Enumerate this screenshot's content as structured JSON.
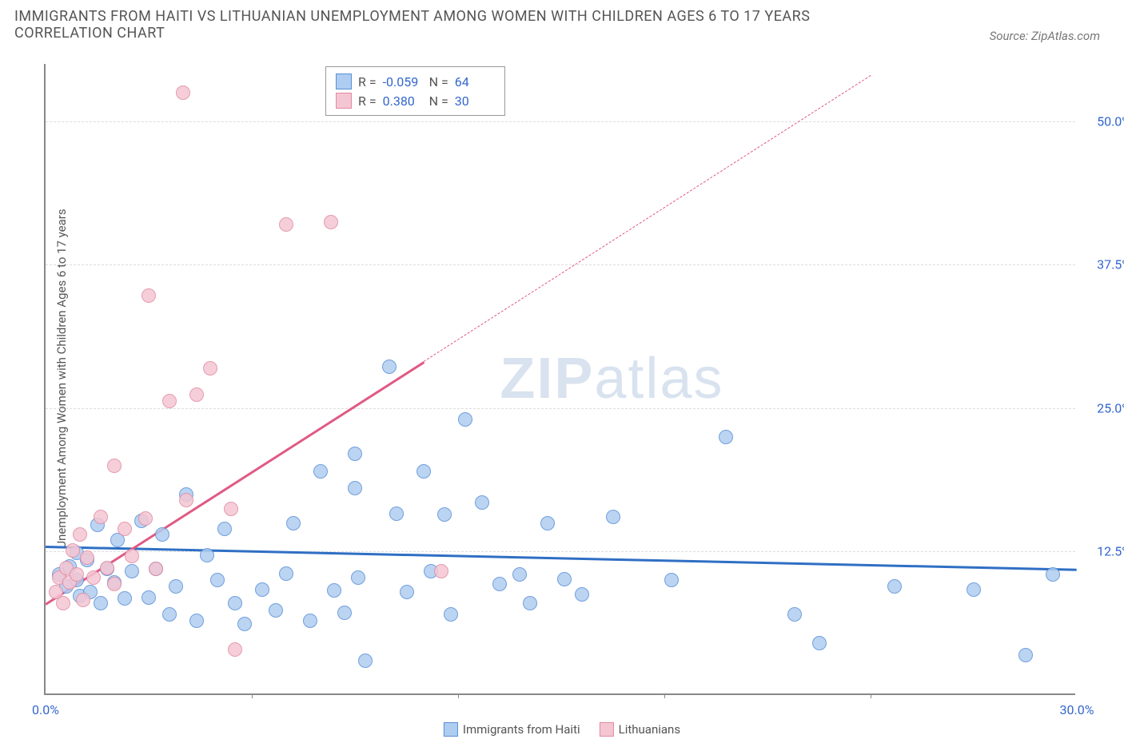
{
  "title": "IMMIGRANTS FROM HAITI VS LITHUANIAN UNEMPLOYMENT AMONG WOMEN WITH CHILDREN AGES 6 TO 17 YEARS CORRELATION CHART",
  "source": "Source: ZipAtlas.com",
  "y_axis_label": "Unemployment Among Women with Children Ages 6 to 17 years",
  "watermark_bold": "ZIP",
  "watermark_light": "atlas",
  "chart": {
    "type": "scatter",
    "xlim": [
      0,
      30
    ],
    "ylim": [
      0,
      55
    ],
    "x_ticks": [
      0.0,
      30.0
    ],
    "x_tick_labels": [
      "0.0%",
      "30.0%"
    ],
    "x_minor_ticks": [
      6,
      12,
      18,
      24
    ],
    "y_ticks": [
      12.5,
      25.0,
      37.5,
      50.0
    ],
    "y_tick_labels": [
      "12.5%",
      "25.0%",
      "37.5%",
      "50.0%"
    ],
    "grid_color": "#dddddd",
    "background_color": "#ffffff",
    "marker_radius": 9,
    "marker_stroke_width": 1.5,
    "marker_fill_opacity": 0.35,
    "series": [
      {
        "name": "Immigrants from Haiti",
        "color_stroke": "#5a8fd6",
        "color_fill": "#aecdf0",
        "stats": {
          "R": "-0.059",
          "N": "64"
        },
        "trend": {
          "x1": 0,
          "y1": 13.0,
          "x2": 30,
          "y2": 11.0,
          "solid_until_x": 30,
          "width": 3,
          "color": "#2f6fc4"
        },
        "points": [
          [
            0.4,
            10.5
          ],
          [
            0.6,
            9.5
          ],
          [
            0.7,
            11.2
          ],
          [
            0.9,
            10.0
          ],
          [
            0.9,
            12.4
          ],
          [
            1.0,
            8.6
          ],
          [
            1.2,
            11.8
          ],
          [
            1.3,
            9.0
          ],
          [
            1.5,
            14.8
          ],
          [
            1.6,
            8.0
          ],
          [
            1.8,
            11.0
          ],
          [
            2.0,
            9.8
          ],
          [
            2.1,
            13.5
          ],
          [
            2.3,
            8.4
          ],
          [
            2.5,
            10.8
          ],
          [
            2.8,
            15.2
          ],
          [
            3.0,
            8.5
          ],
          [
            3.2,
            11.0
          ],
          [
            3.4,
            14.0
          ],
          [
            3.6,
            7.0
          ],
          [
            3.8,
            9.5
          ],
          [
            4.1,
            17.5
          ],
          [
            4.4,
            6.5
          ],
          [
            4.7,
            12.2
          ],
          [
            5.0,
            10.0
          ],
          [
            5.2,
            14.5
          ],
          [
            5.5,
            8.0
          ],
          [
            5.8,
            6.2
          ],
          [
            6.3,
            9.2
          ],
          [
            6.7,
            7.4
          ],
          [
            7.0,
            10.6
          ],
          [
            7.2,
            15.0
          ],
          [
            7.7,
            6.5
          ],
          [
            8.0,
            19.5
          ],
          [
            8.4,
            9.1
          ],
          [
            8.7,
            7.2
          ],
          [
            9.0,
            21.0
          ],
          [
            9.1,
            10.2
          ],
          [
            9.3,
            3.0
          ],
          [
            9.0,
            18.0
          ],
          [
            10.0,
            28.6
          ],
          [
            10.2,
            15.8
          ],
          [
            10.5,
            9.0
          ],
          [
            11.0,
            19.5
          ],
          [
            11.2,
            10.8
          ],
          [
            11.6,
            15.7
          ],
          [
            11.8,
            7.0
          ],
          [
            12.2,
            24.0
          ],
          [
            12.7,
            16.8
          ],
          [
            13.2,
            9.7
          ],
          [
            13.8,
            10.5
          ],
          [
            14.1,
            8.0
          ],
          [
            14.6,
            15.0
          ],
          [
            15.1,
            10.1
          ],
          [
            15.6,
            8.8
          ],
          [
            16.5,
            15.5
          ],
          [
            18.2,
            10.0
          ],
          [
            19.8,
            22.5
          ],
          [
            21.8,
            7.0
          ],
          [
            22.5,
            4.5
          ],
          [
            24.7,
            9.5
          ],
          [
            27.0,
            9.2
          ],
          [
            28.5,
            3.5
          ],
          [
            29.3,
            10.5
          ]
        ]
      },
      {
        "name": "Lithuanians",
        "color_stroke": "#e28aa2",
        "color_fill": "#f4c6d3",
        "stats": {
          "R": "0.380",
          "N": "30"
        },
        "trend": {
          "x1": 0,
          "y1": 8.0,
          "x2": 24,
          "y2": 54.0,
          "solid_until_x": 11,
          "width": 2.5,
          "color": "#e05a84"
        },
        "points": [
          [
            0.3,
            9.0
          ],
          [
            0.4,
            10.2
          ],
          [
            0.5,
            8.0
          ],
          [
            0.6,
            11.1
          ],
          [
            0.7,
            9.8
          ],
          [
            0.8,
            12.6
          ],
          [
            0.9,
            10.5
          ],
          [
            1.0,
            14.0
          ],
          [
            1.1,
            8.3
          ],
          [
            1.2,
            12.0
          ],
          [
            1.4,
            10.2
          ],
          [
            1.6,
            15.5
          ],
          [
            1.8,
            11.1
          ],
          [
            2.0,
            20.0
          ],
          [
            2.0,
            9.7
          ],
          [
            2.3,
            14.5
          ],
          [
            2.5,
            12.1
          ],
          [
            2.9,
            15.4
          ],
          [
            3.0,
            34.8
          ],
          [
            3.2,
            11.0
          ],
          [
            3.6,
            25.6
          ],
          [
            4.0,
            52.5
          ],
          [
            4.1,
            17.0
          ],
          [
            4.4,
            26.2
          ],
          [
            4.8,
            28.5
          ],
          [
            5.4,
            16.2
          ],
          [
            5.5,
            4.0
          ],
          [
            7.0,
            41.0
          ],
          [
            8.3,
            41.2
          ],
          [
            11.5,
            10.8
          ]
        ]
      }
    ]
  },
  "stats_box": {
    "rows": [
      {
        "swatch_fill": "#aecdf0",
        "swatch_stroke": "#5a8fd6",
        "R_label": "R =",
        "R_val": "-0.059",
        "N_label": "N =",
        "N_val": "64"
      },
      {
        "swatch_fill": "#f4c6d3",
        "swatch_stroke": "#e28aa2",
        "R_label": "R =",
        "R_val": "0.380",
        "N_label": "N =",
        "N_val": "30"
      }
    ]
  },
  "bottom_legend": [
    {
      "swatch_fill": "#aecdf0",
      "swatch_stroke": "#5a8fd6",
      "label": "Immigrants from Haiti"
    },
    {
      "swatch_fill": "#f4c6d3",
      "swatch_stroke": "#e28aa2",
      "label": "Lithuanians"
    }
  ]
}
